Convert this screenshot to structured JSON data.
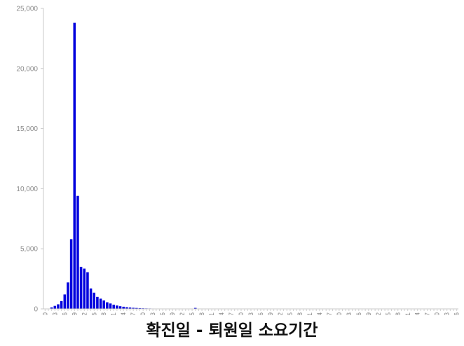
{
  "chart_data": {
    "type": "bar",
    "xlabel": "확진일 - 퇴원일 소요기간",
    "ylabel": "",
    "ylim": [
      0,
      25000
    ],
    "yticks": [
      "0",
      "5,000",
      "10,000",
      "15,000",
      "20,000",
      "25,000"
    ],
    "ytick_values": [
      0,
      5000,
      10000,
      15000,
      20000,
      25000
    ],
    "grid": false,
    "bar_color": "#0000dd",
    "categories": [
      0,
      1,
      2,
      3,
      4,
      5,
      6,
      7,
      8,
      9,
      10,
      11,
      12,
      13,
      14,
      15,
      16,
      17,
      18,
      19,
      20,
      21,
      22,
      23,
      24,
      25,
      26,
      27,
      28,
      29,
      30,
      31,
      32,
      33,
      34,
      35,
      36,
      37,
      38,
      39,
      40,
      41,
      42,
      43,
      44,
      45,
      46,
      47,
      48,
      49,
      50,
      51,
      52,
      53,
      54,
      55,
      56,
      57,
      58,
      59,
      60,
      61,
      62,
      63,
      64,
      65,
      66,
      67,
      68,
      69,
      70,
      71,
      72,
      73,
      74,
      75,
      76,
      77,
      78,
      79,
      80,
      81,
      82,
      83,
      84,
      85,
      86,
      87,
      88,
      89,
      90,
      91,
      92,
      93,
      94,
      95,
      96,
      97,
      98,
      99,
      100,
      101,
      102,
      103,
      104,
      105,
      106,
      107,
      108,
      109,
      110,
      111,
      112,
      113,
      114,
      115,
      116,
      117,
      118,
      119,
      120,
      121,
      122,
      123,
      124,
      125,
      126
    ],
    "values": [
      5,
      20,
      120,
      250,
      380,
      650,
      1200,
      2200,
      5800,
      23800,
      9400,
      3500,
      3350,
      3050,
      1700,
      1350,
      1000,
      850,
      700,
      550,
      450,
      350,
      280,
      220,
      180,
      140,
      110,
      90,
      75,
      60,
      50,
      40,
      35,
      30,
      25,
      20,
      15,
      12,
      10,
      8,
      7,
      6,
      5,
      4,
      4,
      3,
      80,
      3,
      2,
      2,
      2,
      2,
      2,
      2,
      1,
      1,
      1,
      1,
      1,
      1,
      1,
      1,
      1,
      1,
      1,
      1,
      1,
      1,
      1,
      1,
      1,
      1,
      1,
      1,
      1,
      1,
      1,
      1,
      1,
      1,
      1,
      1,
      1,
      1,
      1,
      1,
      1,
      1,
      1,
      1,
      1,
      1,
      1,
      1,
      1,
      1,
      1,
      1,
      1,
      1,
      1,
      1,
      1,
      1,
      1,
      1,
      1,
      1,
      1,
      1,
      1,
      1,
      1,
      1,
      1,
      1,
      1,
      1,
      1,
      1,
      1,
      1,
      1,
      1,
      1,
      1,
      1
    ],
    "xticks": [
      "0",
      "3",
      "6",
      "9",
      "12",
      "15",
      "18",
      "21",
      "24",
      "27",
      "30",
      "33",
      "36",
      "39",
      "42",
      "45",
      "48",
      "51",
      "54",
      "57",
      "60",
      "63",
      "66",
      "69",
      "72",
      "75",
      "78",
      "81",
      "84",
      "87",
      "90",
      "93",
      "96",
      "99",
      "102",
      "105",
      "108",
      "111",
      "114",
      "117",
      "120",
      "123",
      "126"
    ]
  }
}
